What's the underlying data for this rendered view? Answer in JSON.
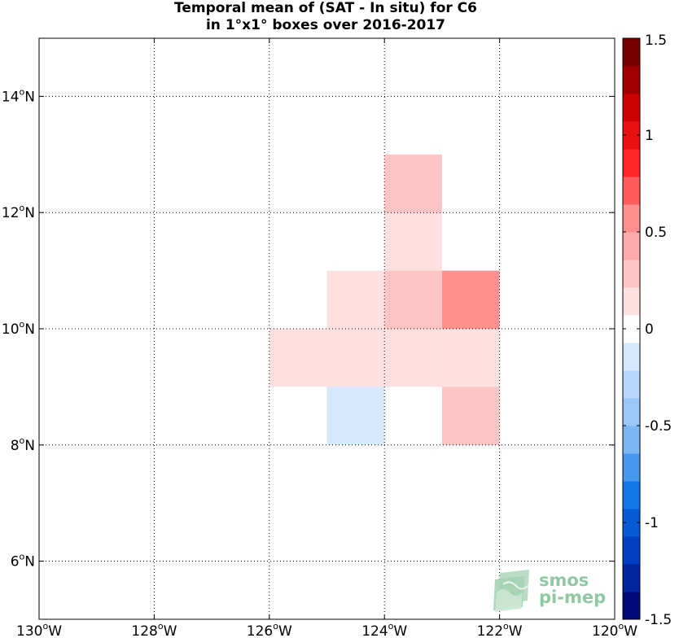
{
  "chart_data": {
    "type": "heatmap",
    "title_line1": "Temporal mean of (SAT - In situ) for C6",
    "title_line2": "in 1°x1° boxes over 2016-2017",
    "xlim": [
      -130,
      -120
    ],
    "ylim": [
      5,
      15
    ],
    "x_ticks": [
      {
        "value": -130,
        "deg": "130",
        "hem": "W"
      },
      {
        "value": -128,
        "deg": "128",
        "hem": "W"
      },
      {
        "value": -126,
        "deg": "126",
        "hem": "W"
      },
      {
        "value": -124,
        "deg": "124",
        "hem": "W"
      },
      {
        "value": -122,
        "deg": "122",
        "hem": "W"
      },
      {
        "value": -120,
        "deg": "120",
        "hem": "W"
      }
    ],
    "y_ticks": [
      {
        "value": 6,
        "deg": "6",
        "hem": "N"
      },
      {
        "value": 8,
        "deg": "8",
        "hem": "N"
      },
      {
        "value": 10,
        "deg": "10",
        "hem": "N"
      },
      {
        "value": 12,
        "deg": "12",
        "hem": "N"
      },
      {
        "value": 14,
        "deg": "14",
        "hem": "N"
      }
    ],
    "degree_symbol": "o",
    "grid": true,
    "cells": [
      {
        "lon": -124,
        "lat": 12,
        "value": 0.3
      },
      {
        "lon": -124,
        "lat": 11,
        "value": 0.1
      },
      {
        "lon": -125,
        "lat": 10,
        "value": 0.1
      },
      {
        "lon": -124,
        "lat": 10,
        "value": 0.3
      },
      {
        "lon": -123,
        "lat": 10,
        "value": 0.6
      },
      {
        "lon": -126,
        "lat": 9,
        "value": 0.1
      },
      {
        "lon": -125,
        "lat": 9,
        "value": 0.1
      },
      {
        "lon": -124,
        "lat": 9,
        "value": 0.1
      },
      {
        "lon": -123,
        "lat": 9,
        "value": 0.1
      },
      {
        "lon": -125,
        "lat": 8,
        "value": -0.1
      },
      {
        "lon": -123,
        "lat": 8,
        "value": 0.3
      }
    ],
    "colorbar": {
      "range": [
        -1.5,
        1.5
      ],
      "levels": 21,
      "tick_labels": [
        "1.5",
        "1",
        "0.5",
        "0",
        "-0.5",
        "-1",
        "-1.5"
      ],
      "tick_values": [
        1.5,
        1,
        0.5,
        0,
        -0.5,
        -1,
        -1.5
      ]
    }
  },
  "logo": {
    "line1": "smos",
    "line2": "pi-mep"
  }
}
